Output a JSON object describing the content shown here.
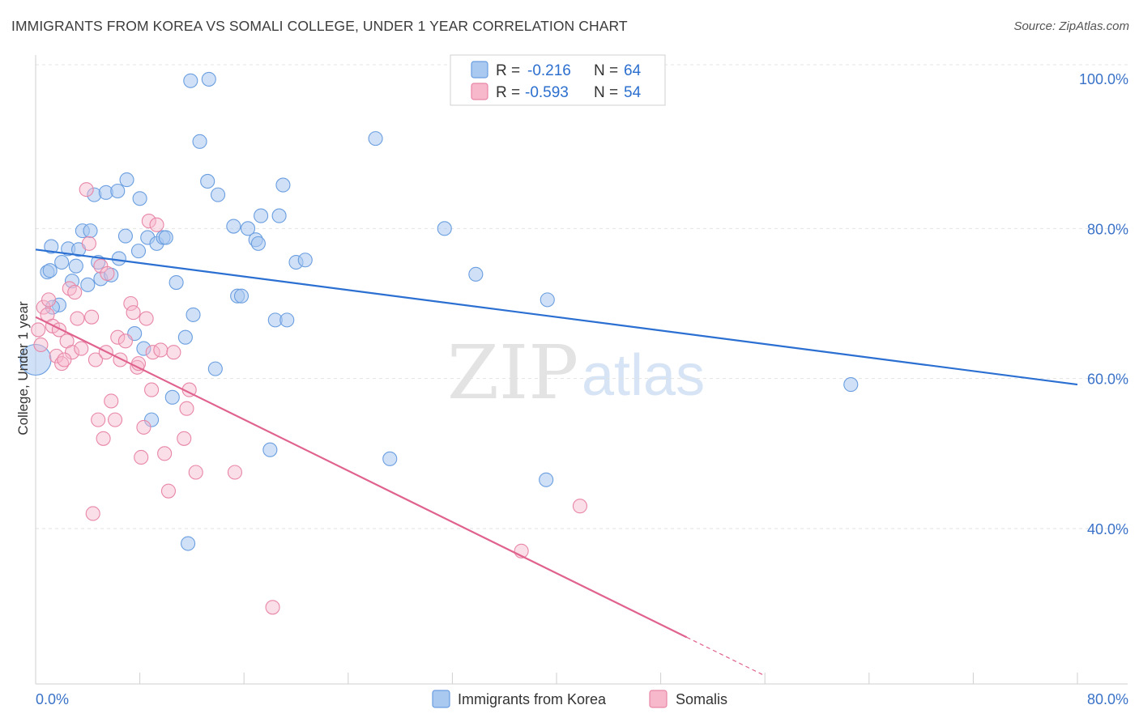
{
  "title": "IMMIGRANTS FROM KOREA VS SOMALI COLLEGE, UNDER 1 YEAR CORRELATION CHART",
  "source": "Source: ZipAtlas.com",
  "watermark": {
    "zip": "ZIP",
    "atlas": "atlas"
  },
  "colors": {
    "korea_fill": "#a9c9f0",
    "korea_stroke": "#6a9ee0",
    "korea_line": "#2a6fd1",
    "somali_fill": "#f7b8cc",
    "somali_stroke": "#e886a6",
    "somali_line": "#e0628e",
    "grid": "#dcdcdc",
    "tick_text": "#3a72c8"
  },
  "legend": {
    "rows": [
      {
        "r_label": "R =",
        "r_value": "-0.216",
        "n_label": "N =",
        "n_value": "64"
      },
      {
        "r_label": "R =",
        "r_value": "-0.593",
        "n_label": "N =",
        "n_value": "54"
      }
    ]
  },
  "chart_data": {
    "type": "scatter",
    "title": "IMMIGRANTS FROM KOREA VS SOMALI COLLEGE, UNDER 1 YEAR CORRELATION CHART",
    "xlabel": "",
    "ylabel": "College, Under 1 year",
    "xlim": [
      0,
      80
    ],
    "ylim": [
      20,
      102
    ],
    "x_tick_labels": [
      "0.0%",
      "80.0%"
    ],
    "y_tick_labels": [
      "100.0%",
      "80.0%",
      "60.0%",
      "40.0%"
    ],
    "y_ticks": [
      100,
      80,
      60,
      40
    ],
    "grid": true,
    "legend_position": "top-center",
    "series": [
      {
        "name": "Immigrants from Korea",
        "color": "#a9c9f0",
        "trend": {
          "x": [
            0,
            80
          ],
          "y": [
            77.2,
            59.2
          ]
        },
        "points": [
          [
            0.0,
            62.5
          ],
          [
            0.9,
            74.2
          ],
          [
            1.1,
            74.4
          ],
          [
            1.2,
            77.6
          ],
          [
            1.8,
            69.8
          ],
          [
            2.0,
            75.5
          ],
          [
            2.5,
            77.3
          ],
          [
            2.8,
            73.0
          ],
          [
            3.1,
            75.0
          ],
          [
            3.3,
            77.2
          ],
          [
            3.6,
            79.7
          ],
          [
            4.0,
            72.5
          ],
          [
            4.2,
            79.7
          ],
          [
            4.5,
            84.5
          ],
          [
            4.8,
            75.5
          ],
          [
            5.0,
            73.3
          ],
          [
            5.4,
            84.8
          ],
          [
            5.8,
            73.8
          ],
          [
            6.3,
            85.0
          ],
          [
            6.4,
            76.0
          ],
          [
            6.9,
            79.0
          ],
          [
            7.0,
            86.5
          ],
          [
            7.6,
            66.0
          ],
          [
            7.9,
            77.0
          ],
          [
            8.0,
            84.0
          ],
          [
            8.3,
            64.0
          ],
          [
            8.6,
            78.8
          ],
          [
            8.9,
            54.5
          ],
          [
            9.3,
            78.0
          ],
          [
            9.8,
            78.8
          ],
          [
            10.0,
            78.8
          ],
          [
            10.5,
            57.5
          ],
          [
            10.8,
            72.8
          ],
          [
            11.5,
            65.5
          ],
          [
            11.7,
            38.0
          ],
          [
            11.9,
            99.7
          ],
          [
            12.1,
            68.5
          ],
          [
            12.6,
            91.6
          ],
          [
            13.2,
            86.3
          ],
          [
            13.3,
            99.9
          ],
          [
            13.8,
            61.3
          ],
          [
            14.0,
            84.5
          ],
          [
            15.2,
            80.3
          ],
          [
            15.5,
            71.0
          ],
          [
            15.8,
            71.0
          ],
          [
            16.3,
            80.0
          ],
          [
            16.9,
            78.5
          ],
          [
            17.1,
            78.0
          ],
          [
            17.3,
            81.7
          ],
          [
            18.0,
            50.5
          ],
          [
            18.4,
            67.8
          ],
          [
            18.7,
            81.7
          ],
          [
            19.0,
            85.8
          ],
          [
            19.3,
            67.8
          ],
          [
            20.0,
            75.5
          ],
          [
            20.7,
            75.8
          ],
          [
            26.1,
            92.0
          ],
          [
            27.2,
            49.3
          ],
          [
            31.4,
            80.0
          ],
          [
            33.8,
            73.9
          ],
          [
            39.3,
            70.5
          ],
          [
            39.2,
            46.5
          ],
          [
            62.6,
            59.2
          ],
          [
            1.3,
            69.5
          ]
        ]
      },
      {
        "name": "Somalis",
        "color": "#f7b8cc",
        "trend": {
          "x": [
            0,
            50
          ],
          "y": [
            68.2,
            25.5
          ]
        },
        "points": [
          [
            0.2,
            66.5
          ],
          [
            0.4,
            64.5
          ],
          [
            0.6,
            69.5
          ],
          [
            0.9,
            68.5
          ],
          [
            1.0,
            70.5
          ],
          [
            1.3,
            67.0
          ],
          [
            1.6,
            63.0
          ],
          [
            1.8,
            66.5
          ],
          [
            2.0,
            62.0
          ],
          [
            2.4,
            65.0
          ],
          [
            2.6,
            72.0
          ],
          [
            2.8,
            63.5
          ],
          [
            3.0,
            71.5
          ],
          [
            3.2,
            68.0
          ],
          [
            3.5,
            64.0
          ],
          [
            3.9,
            85.2
          ],
          [
            4.1,
            78.0
          ],
          [
            4.3,
            68.2
          ],
          [
            4.4,
            42.0
          ],
          [
            4.6,
            62.5
          ],
          [
            4.8,
            54.5
          ],
          [
            5.0,
            75.0
          ],
          [
            5.2,
            52.0
          ],
          [
            5.4,
            63.5
          ],
          [
            5.5,
            74.0
          ],
          [
            5.8,
            57.0
          ],
          [
            6.1,
            54.5
          ],
          [
            6.3,
            65.5
          ],
          [
            6.5,
            62.5
          ],
          [
            6.9,
            65.0
          ],
          [
            7.3,
            70.0
          ],
          [
            7.5,
            68.8
          ],
          [
            7.8,
            61.5
          ],
          [
            7.9,
            62.0
          ],
          [
            8.1,
            49.5
          ],
          [
            8.3,
            53.5
          ],
          [
            8.5,
            68.0
          ],
          [
            8.7,
            81.0
          ],
          [
            8.9,
            58.5
          ],
          [
            9.0,
            63.5
          ],
          [
            9.3,
            80.5
          ],
          [
            9.6,
            63.8
          ],
          [
            9.9,
            50.0
          ],
          [
            10.2,
            45.0
          ],
          [
            10.6,
            63.5
          ],
          [
            11.4,
            52.0
          ],
          [
            11.6,
            56.0
          ],
          [
            11.8,
            58.5
          ],
          [
            12.3,
            47.5
          ],
          [
            15.3,
            47.5
          ],
          [
            18.2,
            29.5
          ],
          [
            37.3,
            37.0
          ],
          [
            41.8,
            43.0
          ],
          [
            2.2,
            62.5
          ]
        ]
      }
    ]
  }
}
